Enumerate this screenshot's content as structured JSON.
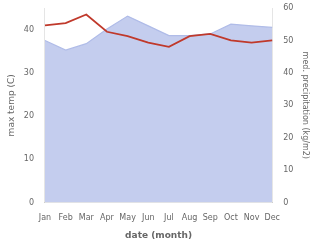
{
  "chart_data": {
    "type": "line",
    "categories": [
      "Jan",
      "Feb",
      "Mar",
      "Apr",
      "May",
      "Jun",
      "Jul",
      "Aug",
      "Sep",
      "Oct",
      "Nov",
      "Dec"
    ],
    "series": [
      {
        "type": "area",
        "axis": "y2",
        "color": "#b0bce8",
        "values": [
          50.0,
          47.0,
          49.0,
          53.5,
          57.5,
          54.5,
          51.5,
          51.5,
          52.0,
          55.0,
          54.5,
          54.0
        ]
      },
      {
        "type": "line",
        "color": "#c0392b",
        "values": [
          41.0,
          41.5,
          43.5,
          39.5,
          38.5,
          37.0,
          36.0,
          38.5,
          39.0,
          37.5,
          37.0,
          37.5
        ]
      }
    ],
    "xlabel": "date (month)",
    "ylabel": "max temp (C)",
    "y2label": "med. precipitation (kg/m2)",
    "ylim": [
      0,
      45
    ],
    "yticks": [
      0,
      10,
      20,
      30,
      40
    ],
    "y2lim": [
      0,
      60
    ],
    "y2ticks": [
      0,
      10,
      20,
      30,
      40,
      50,
      60
    ],
    "grid": false
  }
}
